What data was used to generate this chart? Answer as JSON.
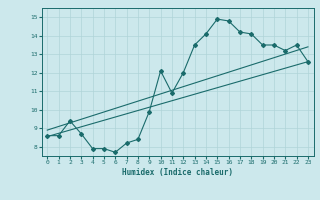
{
  "xlabel": "Humidex (Indice chaleur)",
  "ylabel": "",
  "bg_color": "#cce8ec",
  "line_color": "#1a6b6b",
  "grid_color": "#b0d4d8",
  "xlim": [
    -0.5,
    23.5
  ],
  "ylim": [
    7.5,
    15.5
  ],
  "xticks": [
    0,
    1,
    2,
    3,
    4,
    5,
    6,
    7,
    8,
    9,
    10,
    11,
    12,
    13,
    14,
    15,
    16,
    17,
    18,
    19,
    20,
    21,
    22,
    23
  ],
  "yticks": [
    8,
    9,
    10,
    11,
    12,
    13,
    14,
    15
  ],
  "curve1_x": [
    0,
    1,
    2,
    3,
    4,
    5,
    6,
    7,
    8,
    9,
    10,
    11,
    12,
    13,
    14,
    15,
    16,
    17,
    18,
    19,
    20,
    21,
    22,
    23
  ],
  "curve1_y": [
    8.6,
    8.6,
    9.4,
    8.7,
    7.9,
    7.9,
    7.7,
    8.2,
    8.4,
    9.9,
    12.1,
    10.9,
    12.0,
    13.5,
    14.1,
    14.9,
    14.8,
    14.2,
    14.1,
    13.5,
    13.5,
    13.2,
    13.5,
    12.6
  ],
  "line2_x": [
    0,
    23
  ],
  "line2_y": [
    8.55,
    12.6
  ],
  "line3_x": [
    0,
    23
  ],
  "line3_y": [
    8.9,
    13.4
  ]
}
